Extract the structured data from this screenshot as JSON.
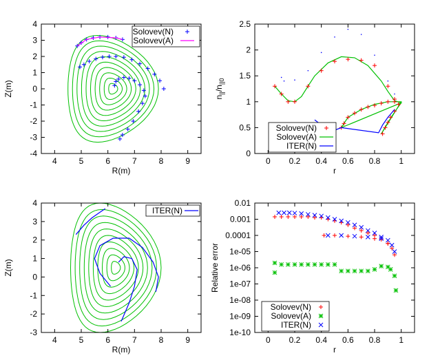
{
  "colors": {
    "solovev_n": "#ff0000",
    "solovev_a": "#00c000",
    "iter_n": "#0000ff",
    "ideal_curve": "#00c000",
    "computed_curve": "#0000ff",
    "upper_dotted": "#0000ff"
  },
  "chart_data": [
    {
      "id": "top-left",
      "type": "line",
      "xlabel": "R(m)",
      "ylabel": "Z(m)",
      "xlim": [
        3.5,
        9.5
      ],
      "ylim": [
        -4,
        4
      ],
      "xticks": [
        4,
        5,
        6,
        7,
        8,
        9
      ],
      "yticks": [
        -4,
        -3,
        -2,
        -1,
        0,
        1,
        2,
        3,
        4
      ],
      "grid": false,
      "legend_position": "top-right",
      "legend": [
        {
          "label": "Solovev(N)",
          "marker": "+",
          "color": "#0000ff"
        },
        {
          "label": "Solovev(A)",
          "marker": "line",
          "color": "#ff00ff"
        }
      ],
      "flux_surfaces": {
        "color": "#00c000",
        "R0": 6.2,
        "Z0": 0,
        "count": 10,
        "outer_R_min": 4.8,
        "outer_R_max": 8.2,
        "outer_Z_min": -3.3,
        "outer_Z_max": 3.3
      },
      "series": [
        {
          "name": "Solovev(N)",
          "marker": "+",
          "color": "#0000ff",
          "points": [
            [
              4.85,
              2.65
            ],
            [
              5.0,
              2.85
            ],
            [
              5.2,
              3.05
            ],
            [
              5.45,
              3.15
            ],
            [
              5.7,
              3.2
            ],
            [
              6.0,
              3.2
            ],
            [
              6.3,
              3.15
            ],
            [
              6.55,
              3.05
            ],
            [
              4.95,
              1.35
            ],
            [
              5.1,
              1.5
            ],
            [
              5.3,
              1.7
            ],
            [
              5.55,
              1.85
            ],
            [
              5.8,
              1.95
            ],
            [
              6.05,
              2.0
            ],
            [
              6.3,
              2.0
            ],
            [
              6.6,
              1.95
            ],
            [
              6.9,
              1.8
            ],
            [
              7.2,
              1.55
            ],
            [
              7.5,
              1.25
            ],
            [
              7.75,
              0.9
            ],
            [
              7.95,
              0.5
            ],
            [
              8.1,
              0.0
            ],
            [
              6.25,
              0.2
            ],
            [
              6.3,
              0.45
            ],
            [
              6.4,
              0.6
            ],
            [
              6.6,
              0.7
            ],
            [
              6.8,
              0.65
            ],
            [
              7.0,
              0.5
            ],
            [
              7.2,
              0.25
            ],
            [
              7.35,
              -0.1
            ],
            [
              7.4,
              -0.45
            ],
            [
              7.3,
              -0.9
            ],
            [
              7.15,
              -1.4
            ],
            [
              6.95,
              -2.0
            ],
            [
              6.75,
              -2.5
            ],
            [
              6.55,
              -2.85
            ],
            [
              6.45,
              -3.1
            ]
          ]
        },
        {
          "name": "Solovev(A)",
          "marker": "line",
          "color": "#ff00ff",
          "points": [
            [
              4.85,
              2.65
            ],
            [
              5.2,
              3.05
            ],
            [
              5.7,
              3.2
            ],
            [
              6.3,
              3.15
            ],
            [
              6.55,
              3.05
            ]
          ]
        }
      ]
    },
    {
      "id": "top-right",
      "type": "line",
      "xlabel": "r",
      "ylabel": "n||/n||0",
      "xlim": [
        -0.1,
        1.1
      ],
      "ylim": [
        0,
        2.5
      ],
      "xticks": [
        0,
        0.2,
        0.4,
        0.6,
        0.8,
        1
      ],
      "yticks": [
        0,
        0.5,
        1,
        1.5,
        2,
        2.5
      ],
      "grid": false,
      "legend_position": "bottom-left",
      "legend": [
        {
          "label": "Solovev(N)",
          "marker": "+",
          "color": "#ff0000"
        },
        {
          "label": "Solovev(A)",
          "marker": "line",
          "color": "#00c000"
        },
        {
          "label": "ITER(N)",
          "marker": "line",
          "color": "#0000ff"
        }
      ],
      "series": [
        {
          "name": "Solovev(A)",
          "marker": "line",
          "color": "#00c000",
          "points": [
            [
              0.05,
              1.3
            ],
            [
              0.1,
              1.15
            ],
            [
              0.15,
              1.02
            ],
            [
              0.2,
              1.0
            ],
            [
              0.25,
              1.1
            ],
            [
              0.3,
              1.3
            ],
            [
              0.35,
              1.5
            ],
            [
              0.45,
              1.75
            ],
            [
              0.55,
              1.87
            ],
            [
              0.65,
              1.85
            ],
            [
              0.75,
              1.7
            ],
            [
              0.85,
              1.4
            ],
            [
              0.9,
              1.2
            ],
            [
              0.95,
              1.02
            ],
            [
              1.0,
              0.98
            ],
            [
              0.55,
              0.5
            ],
            [
              0.6,
              0.7
            ],
            [
              0.7,
              0.85
            ],
            [
              0.8,
              0.95
            ],
            [
              0.9,
              1.0
            ],
            [
              1.0,
              1.0
            ],
            [
              0.85,
              0.38
            ],
            [
              0.9,
              0.6
            ],
            [
              0.95,
              0.8
            ],
            [
              1.0,
              0.98
            ]
          ]
        },
        {
          "name": "Solovev(N)",
          "marker": "+",
          "color": "#ff0000",
          "points": [
            [
              0.05,
              1.3
            ],
            [
              0.1,
              1.15
            ],
            [
              0.15,
              1.0
            ],
            [
              0.2,
              1.0
            ],
            [
              0.3,
              1.3
            ],
            [
              0.4,
              1.6
            ],
            [
              0.5,
              1.78
            ],
            [
              0.6,
              1.82
            ],
            [
              0.7,
              1.8
            ],
            [
              0.8,
              1.7
            ],
            [
              0.9,
              1.3
            ],
            [
              0.95,
              1.05
            ],
            [
              0.55,
              0.5
            ],
            [
              0.57,
              0.58
            ],
            [
              0.6,
              0.7
            ],
            [
              0.65,
              0.78
            ],
            [
              0.7,
              0.85
            ],
            [
              0.75,
              0.9
            ],
            [
              0.8,
              0.93
            ],
            [
              0.85,
              0.97
            ],
            [
              0.9,
              1.0
            ],
            [
              0.95,
              1.0
            ],
            [
              0.86,
              0.38
            ],
            [
              0.88,
              0.5
            ],
            [
              0.9,
              0.6
            ],
            [
              0.92,
              0.7
            ],
            [
              0.95,
              0.82
            ],
            [
              0.98,
              0.95
            ]
          ]
        },
        {
          "name": "ITER(N)",
          "marker": "line",
          "color": "#0000ff",
          "points": [
            [
              0.35,
              0.65
            ],
            [
              0.4,
              0.55
            ],
            [
              0.45,
              0.48
            ],
            [
              0.5,
              0.45
            ],
            [
              0.55,
              0.5
            ],
            [
              0.83,
              0.4
            ],
            [
              0.86,
              0.55
            ],
            [
              0.9,
              0.7
            ],
            [
              0.95,
              0.85
            ]
          ]
        },
        {
          "name": "upper-dotted",
          "marker": "dots",
          "color": "#0000ff",
          "points": [
            [
              0.1,
              1.47
            ],
            [
              0.12,
              1.4
            ],
            [
              0.2,
              1.42
            ],
            [
              0.3,
              1.6
            ],
            [
              0.4,
              1.95
            ],
            [
              0.5,
              2.25
            ],
            [
              0.6,
              2.4
            ],
            [
              0.7,
              2.3
            ],
            [
              0.8,
              1.9
            ],
            [
              0.9,
              1.4
            ],
            [
              0.95,
              1.15
            ]
          ]
        }
      ]
    },
    {
      "id": "bottom-left",
      "type": "line",
      "xlabel": "R(m)",
      "ylabel": "Z(m)",
      "xlim": [
        3.5,
        9.5
      ],
      "ylim": [
        -3,
        4
      ],
      "xticks": [
        4,
        5,
        6,
        7,
        8,
        9
      ],
      "yticks": [
        -3,
        -2,
        -1,
        0,
        1,
        2,
        3,
        4
      ],
      "grid": false,
      "legend_position": "top-right",
      "legend": [
        {
          "label": "ITER(N)",
          "marker": "line",
          "color": "#0000ff"
        }
      ],
      "flux_surfaces": {
        "color": "#00c000",
        "R0": 6.3,
        "Z0": 0.5,
        "count": 10,
        "outer_R_min": 4.8,
        "outer_R_max": 8.2,
        "outer_Z_min": -3.2,
        "outer_Z_max": 3.8
      },
      "series": [
        {
          "name": "ITER(N)",
          "marker": "line",
          "color": "#0000ff",
          "points": [
            [
              4.8,
              2.3
            ],
            [
              5.1,
              2.8
            ],
            [
              5.4,
              3.2
            ],
            [
              5.7,
              3.5
            ],
            [
              5.9,
              3.7
            ]
          ]
        },
        {
          "name": "ITER(N)",
          "marker": "line",
          "color": "#0000ff",
          "points": [
            [
              6.1,
              -0.5
            ],
            [
              5.7,
              0.2
            ],
            [
              5.5,
              1.0
            ],
            [
              5.7,
              1.7
            ],
            [
              6.2,
              2.1
            ],
            [
              6.8,
              2.1
            ],
            [
              7.3,
              1.6
            ],
            [
              7.7,
              0.8
            ],
            [
              7.9,
              0.0
            ],
            [
              7.8,
              -0.8
            ]
          ]
        },
        {
          "name": "ITER(N)",
          "marker": "line",
          "color": "#0000ff",
          "points": [
            [
              6.4,
              0.8
            ],
            [
              6.6,
              1.1
            ],
            [
              6.9,
              1.0
            ],
            [
              7.1,
              0.4
            ],
            [
              7.0,
              -0.5
            ],
            [
              6.8,
              -1.4
            ],
            [
              6.5,
              -2.4
            ]
          ]
        }
      ]
    },
    {
      "id": "bottom-right",
      "type": "scatter",
      "xlabel": "r",
      "ylabel": "Relative error",
      "xlim": [
        -0.1,
        1.1
      ],
      "ylim_exponent": [
        -10,
        -2
      ],
      "xticks": [
        0,
        0.2,
        0.4,
        0.6,
        0.8,
        1
      ],
      "ytick_labels": [
        "1e-10",
        "1e-09",
        "1e-08",
        "1e-07",
        "1e-06",
        "1e-05",
        "0.0001",
        "0.001",
        "0.01"
      ],
      "ytick_exponents": [
        -10,
        -9,
        -8,
        -7,
        -6,
        -5,
        -4,
        -3,
        -2
      ],
      "y_scale": "log",
      "grid": false,
      "legend_position": "bottom-left",
      "legend": [
        {
          "label": "Solovev(N)",
          "marker": "+",
          "color": "#ff0000"
        },
        {
          "label": "Solovev(A)",
          "marker": "*",
          "color": "#00c000"
        },
        {
          "label": "ITER(N)",
          "marker": "x",
          "color": "#0000ff"
        }
      ],
      "series": [
        {
          "name": "Solovev(N)",
          "marker": "+",
          "color": "#ff0000",
          "points": [
            [
              0.05,
              -2.85
            ],
            [
              0.1,
              -2.85
            ],
            [
              0.15,
              -2.85
            ],
            [
              0.2,
              -2.85
            ],
            [
              0.25,
              -2.85
            ],
            [
              0.3,
              -2.85
            ],
            [
              0.35,
              -2.9
            ],
            [
              0.4,
              -2.9
            ],
            [
              0.45,
              -3.0
            ],
            [
              0.5,
              -3.1
            ],
            [
              0.55,
              -3.2
            ],
            [
              0.6,
              -3.35
            ],
            [
              0.65,
              -3.55
            ],
            [
              0.7,
              -3.7
            ],
            [
              0.75,
              -3.85
            ],
            [
              0.8,
              -4.0
            ],
            [
              0.85,
              -4.25
            ],
            [
              0.9,
              -4.5
            ],
            [
              0.93,
              -4.8
            ],
            [
              0.95,
              -5.2
            ],
            [
              0.42,
              -4.0
            ],
            [
              0.5,
              -4.0
            ],
            [
              0.6,
              -4.05
            ],
            [
              0.7,
              -4.1
            ],
            [
              0.8,
              -4.2
            ],
            [
              0.9,
              -4.5
            ]
          ]
        },
        {
          "name": "Solovev(A)",
          "marker": "*",
          "color": "#00c000",
          "points": [
            [
              0.05,
              -5.7
            ],
            [
              0.05,
              -6.3
            ],
            [
              0.1,
              -5.8
            ],
            [
              0.15,
              -5.8
            ],
            [
              0.2,
              -5.8
            ],
            [
              0.25,
              -5.8
            ],
            [
              0.3,
              -5.8
            ],
            [
              0.35,
              -5.8
            ],
            [
              0.4,
              -5.8
            ],
            [
              0.45,
              -5.8
            ],
            [
              0.5,
              -5.8
            ],
            [
              0.55,
              -6.2
            ],
            [
              0.6,
              -6.2
            ],
            [
              0.65,
              -6.2
            ],
            [
              0.7,
              -6.2
            ],
            [
              0.75,
              -6.2
            ],
            [
              0.8,
              -6.1
            ],
            [
              0.85,
              -5.9
            ],
            [
              0.9,
              -5.95
            ],
            [
              0.92,
              -6.1
            ],
            [
              0.95,
              -6.5
            ],
            [
              0.96,
              -7.4
            ]
          ]
        },
        {
          "name": "ITER(N)",
          "marker": "x",
          "color": "#0000ff",
          "points": [
            [
              0.08,
              -2.6
            ],
            [
              0.12,
              -2.6
            ],
            [
              0.16,
              -2.6
            ],
            [
              0.2,
              -2.62
            ],
            [
              0.25,
              -2.65
            ],
            [
              0.3,
              -2.7
            ],
            [
              0.35,
              -2.75
            ],
            [
              0.4,
              -2.8
            ],
            [
              0.45,
              -2.9
            ],
            [
              0.5,
              -3.0
            ],
            [
              0.55,
              -3.1
            ],
            [
              0.6,
              -3.2
            ],
            [
              0.65,
              -3.35
            ],
            [
              0.7,
              -3.5
            ],
            [
              0.75,
              -3.7
            ],
            [
              0.8,
              -3.85
            ],
            [
              0.85,
              -4.1
            ],
            [
              0.9,
              -4.3
            ],
            [
              0.93,
              -4.6
            ],
            [
              0.95,
              -5.0
            ],
            [
              0.45,
              -4.0
            ],
            [
              0.55,
              -4.0
            ],
            [
              0.65,
              -4.05
            ],
            [
              0.75,
              -4.1
            ],
            [
              0.85,
              -4.2
            ]
          ]
        }
      ]
    }
  ]
}
